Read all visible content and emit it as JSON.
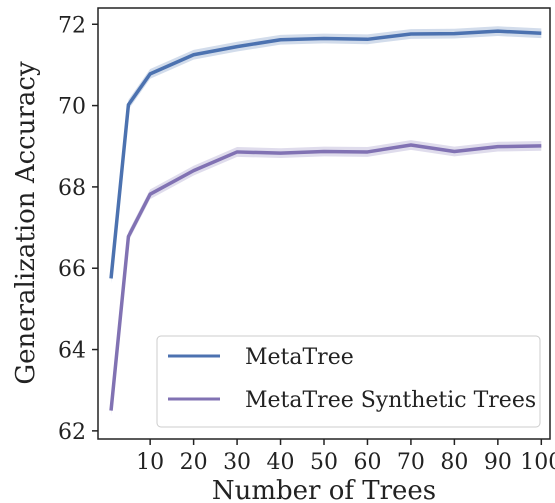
{
  "chart_data": {
    "type": "line",
    "title": "",
    "xlabel": "Number of Trees",
    "ylabel": "Generalization Accuracy",
    "x": [
      1,
      5,
      10,
      20,
      30,
      40,
      50,
      60,
      70,
      80,
      90,
      100
    ],
    "xticks": [
      10,
      20,
      30,
      40,
      50,
      60,
      70,
      80,
      90,
      100
    ],
    "yticks": [
      62,
      64,
      66,
      68,
      70,
      72
    ],
    "xlim": [
      -2,
      102
    ],
    "ylim": [
      61.8,
      72.4
    ],
    "grid": false,
    "legend_position": "bottom-right",
    "series": [
      {
        "name": "MetaTree",
        "color": "#4c72b0",
        "values": [
          65.75,
          70.02,
          70.78,
          71.25,
          71.45,
          71.62,
          71.65,
          71.63,
          71.76,
          71.77,
          71.83,
          71.78
        ]
      },
      {
        "name": "MetaTree Synthetic Trees",
        "color": "#8172b3",
        "values": [
          62.5,
          66.78,
          67.82,
          68.4,
          68.86,
          68.83,
          68.87,
          68.86,
          69.03,
          68.87,
          68.99,
          69.01
        ]
      }
    ]
  }
}
